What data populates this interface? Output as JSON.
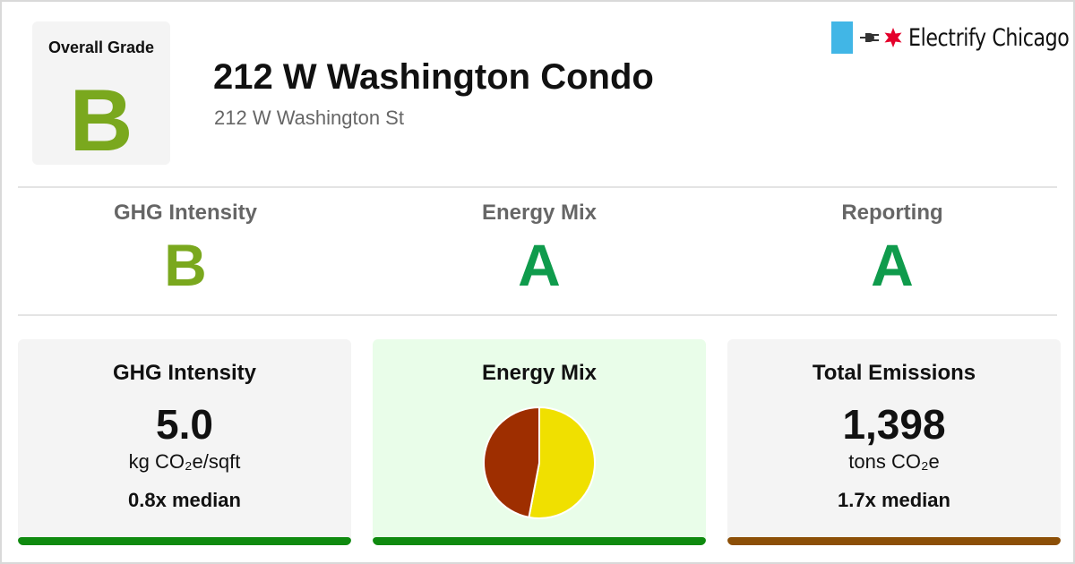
{
  "header": {
    "overall_label": "Overall Grade",
    "overall_grade": "B",
    "title": "212 W Washington Condo",
    "address": "212 W Washington St",
    "brand": "Electrify Chicago"
  },
  "subgrades": [
    {
      "label": "GHG Intensity",
      "grade": "B"
    },
    {
      "label": "Energy Mix",
      "grade": "A"
    },
    {
      "label": "Reporting",
      "grade": "A"
    }
  ],
  "cards": {
    "ghg": {
      "title": "GHG Intensity",
      "value": "5.0",
      "unit": "kg CO₂e/sqft",
      "median": "0.8x median"
    },
    "mix": {
      "title": "Energy Mix"
    },
    "total": {
      "title": "Total Emissions",
      "value": "1,398",
      "unit": "tons CO₂e",
      "median": "1.7x median"
    }
  },
  "chart_data": {
    "type": "pie",
    "slices": [
      {
        "value": 53,
        "color": "#f0e000"
      },
      {
        "value": 47,
        "color": "#9e2e00"
      }
    ]
  },
  "colors": {
    "grade_b": "#7aa81e",
    "grade_a": "#0f9b4c",
    "good_bar": "#0f8a0f",
    "bad_bar": "#8c4f07",
    "mix_card_bg": "#e9fde9",
    "brand_flag": "#41b6e6",
    "brand_star": "#e4002b"
  }
}
